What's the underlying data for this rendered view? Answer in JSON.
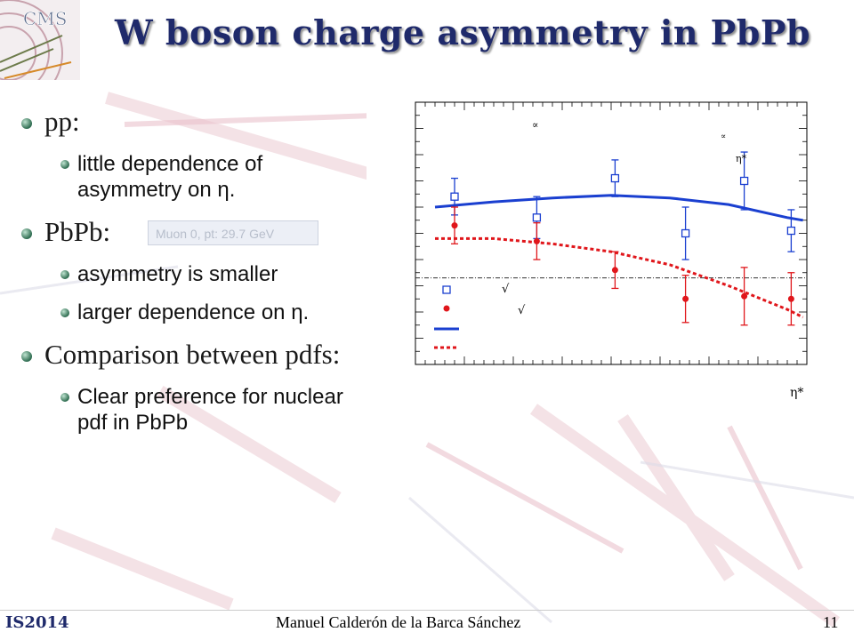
{
  "slide": {
    "title": "W boson charge asymmetry in PbPb",
    "logo_text": "CMS",
    "page_number": "11"
  },
  "bullets": [
    {
      "text": "pp:",
      "sub": [
        "little dependence of asymmetry on η."
      ]
    },
    {
      "text": "PbPb:",
      "sub": [
        "asymmetry is smaller",
        "larger dependence on η."
      ]
    },
    {
      "text": "Comparison between pdfs:",
      "sub": [
        "Clear preference for nuclear pdf in PbPb"
      ]
    }
  ],
  "background": {
    "ghost_label": "Muon 0, pt: 29.7 GeV"
  },
  "footer": {
    "conference": "IS2014",
    "author": "Manuel Calderón de la Barca Sánchez"
  },
  "colors": {
    "title": "#1f2a6b",
    "pp": "#1a3fd0",
    "pbpb": "#e0161b",
    "bullet": "#2d6b4f"
  },
  "chart_data": {
    "type": "scatter",
    "title": "",
    "xlabel": "η*",
    "ylabel": "",
    "xlim": [
      0,
      1
    ],
    "ylim": [
      0,
      1
    ],
    "grid": false,
    "reference_line": {
      "y": 0.33,
      "style": "dash-dot"
    },
    "annotations": [
      "∝",
      "∝",
      "η*",
      "√",
      "√"
    ],
    "legend": {
      "placement": "bottom-left",
      "entries": [
        "",
        "",
        "",
        ""
      ]
    },
    "series": [
      {
        "kind": "points",
        "marker": "open-square",
        "color": "#1a3fd0",
        "x": [
          0.1,
          0.31,
          0.51,
          0.69,
          0.84,
          0.96
        ],
        "y": [
          0.64,
          0.56,
          0.71,
          0.5,
          0.7,
          0.51
        ],
        "yerr": [
          0.07,
          0.08,
          0.07,
          0.1,
          0.11,
          0.08
        ]
      },
      {
        "kind": "points",
        "marker": "filled-circle",
        "color": "#e0161b",
        "x": [
          0.1,
          0.31,
          0.51,
          0.69,
          0.84,
          0.96
        ],
        "y": [
          0.53,
          0.47,
          0.36,
          0.25,
          0.26,
          0.25
        ],
        "yerr": [
          0.07,
          0.07,
          0.07,
          0.09,
          0.11,
          0.1
        ]
      },
      {
        "kind": "curve",
        "style": "solid",
        "color": "#1a3fd0",
        "x": [
          0.05,
          0.2,
          0.35,
          0.5,
          0.65,
          0.8,
          0.95,
          0.99
        ],
        "y": [
          0.6,
          0.62,
          0.635,
          0.645,
          0.635,
          0.61,
          0.56,
          0.55
        ]
      },
      {
        "kind": "curve",
        "style": "dashed",
        "color": "#e0161b",
        "x": [
          0.05,
          0.2,
          0.35,
          0.5,
          0.65,
          0.8,
          0.95,
          0.99
        ],
        "y": [
          0.48,
          0.48,
          0.46,
          0.43,
          0.38,
          0.3,
          0.21,
          0.18
        ]
      }
    ]
  }
}
